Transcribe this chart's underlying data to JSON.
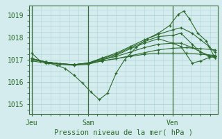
{
  "xlabel": "Pression niveau de la mer( hPa )",
  "bg_color": "#d4ecee",
  "grid_color": "#aed4d8",
  "line_color": "#2d6a2d",
  "marker_color": "#2d6a2d",
  "tick_label_color": "#2d6a2d",
  "axis_label_color": "#2d6a2d",
  "xtick_positions": [
    0,
    2,
    5
  ],
  "xtick_labels": [
    "Jeu",
    "Sam",
    "Ven"
  ],
  "ytick_values": [
    1015,
    1016,
    1017,
    1018,
    1019
  ],
  "xlim": [
    -0.1,
    6.6
  ],
  "ylim": [
    1014.55,
    1019.45
  ],
  "vline_positions": [
    0,
    2,
    5
  ],
  "series": [
    [
      [
        0.0,
        1017.3
      ],
      [
        0.3,
        1016.95
      ],
      [
        0.6,
        1016.85
      ],
      [
        0.9,
        1016.75
      ],
      [
        1.2,
        1016.6
      ],
      [
        1.5,
        1016.3
      ],
      [
        1.8,
        1015.95
      ],
      [
        2.1,
        1015.55
      ],
      [
        2.4,
        1015.2
      ],
      [
        2.7,
        1015.5
      ],
      [
        3.0,
        1016.4
      ],
      [
        3.3,
        1017.0
      ],
      [
        3.7,
        1017.55
      ],
      [
        4.1,
        1017.95
      ],
      [
        4.5,
        1018.2
      ],
      [
        4.9,
        1018.55
      ],
      [
        5.2,
        1019.05
      ],
      [
        5.4,
        1019.2
      ],
      [
        5.6,
        1018.85
      ],
      [
        5.9,
        1018.2
      ],
      [
        6.2,
        1017.85
      ],
      [
        6.5,
        1017.1
      ]
    ],
    [
      [
        0.0,
        1016.95
      ],
      [
        0.5,
        1016.85
      ],
      [
        1.0,
        1016.8
      ],
      [
        1.5,
        1016.75
      ],
      [
        2.0,
        1016.8
      ],
      [
        2.5,
        1016.95
      ],
      [
        3.0,
        1017.05
      ],
      [
        3.5,
        1017.15
      ],
      [
        4.0,
        1017.25
      ],
      [
        4.5,
        1017.3
      ],
      [
        5.0,
        1017.3
      ],
      [
        5.5,
        1017.3
      ],
      [
        6.0,
        1017.25
      ],
      [
        6.5,
        1017.2
      ]
    ],
    [
      [
        0.0,
        1017.0
      ],
      [
        0.5,
        1016.9
      ],
      [
        1.0,
        1016.82
      ],
      [
        1.5,
        1016.78
      ],
      [
        2.0,
        1016.82
      ],
      [
        2.5,
        1016.95
      ],
      [
        3.0,
        1017.05
      ],
      [
        3.5,
        1017.18
      ],
      [
        4.0,
        1017.32
      ],
      [
        4.5,
        1017.45
      ],
      [
        5.0,
        1017.52
      ],
      [
        5.5,
        1017.55
      ],
      [
        6.0,
        1017.5
      ],
      [
        6.5,
        1017.45
      ]
    ],
    [
      [
        0.0,
        1017.05
      ],
      [
        0.5,
        1016.9
      ],
      [
        1.0,
        1016.82
      ],
      [
        1.5,
        1016.78
      ],
      [
        2.0,
        1016.85
      ],
      [
        2.5,
        1017.0
      ],
      [
        3.0,
        1017.15
      ],
      [
        3.5,
        1017.35
      ],
      [
        4.0,
        1017.55
      ],
      [
        4.5,
        1017.7
      ],
      [
        5.0,
        1017.75
      ],
      [
        5.3,
        1017.75
      ],
      [
        5.7,
        1017.55
      ],
      [
        6.0,
        1017.35
      ],
      [
        6.3,
        1017.2
      ],
      [
        6.5,
        1017.15
      ]
    ],
    [
      [
        0.0,
        1017.05
      ],
      [
        0.5,
        1016.9
      ],
      [
        1.0,
        1016.82
      ],
      [
        1.5,
        1016.78
      ],
      [
        2.0,
        1016.85
      ],
      [
        2.5,
        1017.0
      ],
      [
        3.0,
        1017.2
      ],
      [
        3.5,
        1017.5
      ],
      [
        4.0,
        1017.75
      ],
      [
        4.5,
        1017.95
      ],
      [
        5.0,
        1017.75
      ],
      [
        5.3,
        1017.6
      ],
      [
        5.7,
        1016.85
      ],
      [
        6.0,
        1016.95
      ],
      [
        6.3,
        1017.1
      ],
      [
        6.5,
        1017.15
      ]
    ],
    [
      [
        0.0,
        1017.05
      ],
      [
        0.5,
        1016.9
      ],
      [
        1.0,
        1016.82
      ],
      [
        1.5,
        1016.78
      ],
      [
        2.0,
        1016.85
      ],
      [
        2.5,
        1017.05
      ],
      [
        3.0,
        1017.25
      ],
      [
        3.5,
        1017.55
      ],
      [
        4.0,
        1017.82
      ],
      [
        4.5,
        1018.05
      ],
      [
        5.0,
        1018.1
      ],
      [
        5.3,
        1018.2
      ],
      [
        5.7,
        1017.7
      ],
      [
        6.0,
        1017.35
      ],
      [
        6.3,
        1017.15
      ],
      [
        6.5,
        1017.1
      ]
    ],
    [
      [
        0.0,
        1017.05
      ],
      [
        0.5,
        1016.9
      ],
      [
        1.0,
        1016.82
      ],
      [
        1.5,
        1016.78
      ],
      [
        2.0,
        1016.85
      ],
      [
        2.5,
        1017.08
      ],
      [
        3.0,
        1017.3
      ],
      [
        3.5,
        1017.6
      ],
      [
        4.0,
        1017.9
      ],
      [
        4.5,
        1018.15
      ],
      [
        5.0,
        1018.35
      ],
      [
        5.3,
        1018.45
      ],
      [
        5.7,
        1018.2
      ],
      [
        6.0,
        1017.9
      ],
      [
        6.3,
        1017.6
      ],
      [
        6.5,
        1017.35
      ]
    ]
  ]
}
